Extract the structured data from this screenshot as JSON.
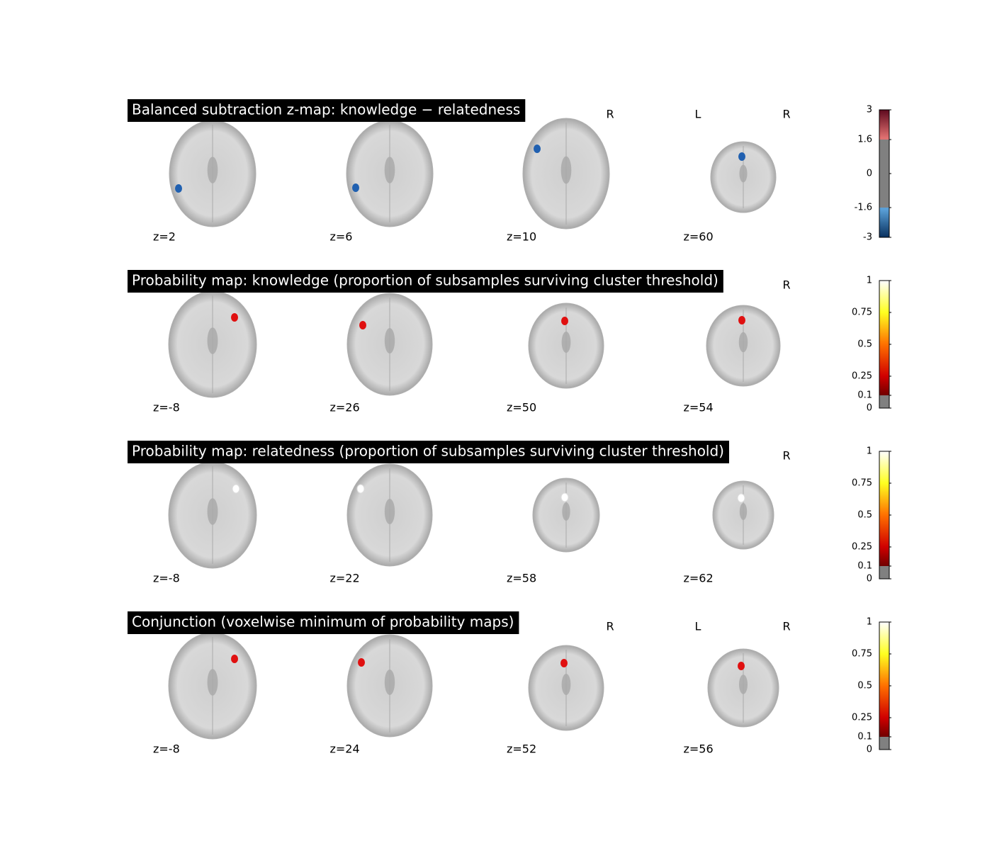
{
  "panels": [
    {
      "title": "Balanced subtraction z-map: knowledge − relatedness",
      "slices": [
        "z=2",
        "z=6",
        "z=10",
        "z=60"
      ],
      "orientation_labels": [
        "R",
        "L",
        "R"
      ],
      "colorbar": {
        "map": "cold_hot",
        "lim": [
          -3,
          3
        ],
        "threshold": 1.6,
        "ticks": [
          3,
          1.6,
          0,
          -1.6,
          -3
        ]
      }
    },
    {
      "title": "Probability map: knowledge (proportion of subsamples surviving cluster threshold)",
      "slices": [
        "z=-8",
        "z=26",
        "z=50",
        "z=54"
      ],
      "orientation_labels": [
        "R"
      ],
      "colorbar": {
        "map": "hot",
        "lim": [
          0,
          1
        ],
        "threshold": 0.1,
        "ticks": [
          1,
          0.75,
          0.5,
          0.25,
          0.1,
          0
        ]
      }
    },
    {
      "title": "Probability map: relatedness (proportion of subsamples surviving cluster threshold)",
      "slices": [
        "z=-8",
        "z=22",
        "z=58",
        "z=62"
      ],
      "orientation_labels": [
        "R"
      ],
      "colorbar": {
        "map": "hot",
        "lim": [
          0,
          1
        ],
        "threshold": 0.1,
        "ticks": [
          1,
          0.75,
          0.5,
          0.25,
          0.1,
          0
        ]
      }
    },
    {
      "title": "Conjunction (voxelwise minimum of probability maps)",
      "slices": [
        "z=-8",
        "z=24",
        "z=52",
        "z=56"
      ],
      "orientation_labels": [
        "R",
        "L",
        "R"
      ],
      "colorbar": {
        "map": "hot",
        "lim": [
          0,
          1
        ],
        "threshold": 0.1,
        "ticks": [
          1,
          0.75,
          0.5,
          0.25,
          0.1,
          0
        ]
      }
    }
  ]
}
